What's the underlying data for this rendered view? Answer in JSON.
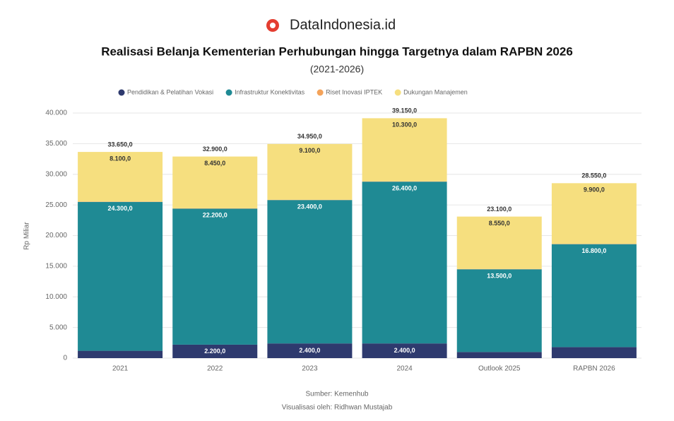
{
  "brand": "DataIndonesia.id",
  "chart_data": {
    "type": "stacked_bar",
    "title": "Realisasi Belanja Kementerian Perhubungan hingga Targetnya dalam RAPBN 2026",
    "subtitle": "(2021-2026)",
    "y_label": "Rp Miliar",
    "categories": [
      "2021",
      "2022",
      "2023",
      "2024",
      "Outlook 2025",
      "RAPBN 2026"
    ],
    "series": [
      {
        "name": "Pendidikan & Pelatihan Vokasi",
        "color": "#2e3a6e",
        "values": [
          1200,
          2200,
          2400,
          2400,
          1000,
          1800
        ],
        "value_labels": [
          null,
          "2.200,0",
          "2.400,0",
          "2.400,0",
          null,
          null
        ]
      },
      {
        "name": "Infrastruktur Konektivitas",
        "color": "#1f8a94",
        "values": [
          24300,
          22200,
          23400,
          26400,
          13500,
          16800
        ],
        "value_labels": [
          "24.300,0",
          "22.200,0",
          "23.400,0",
          "26.400,0",
          "13.500,0",
          "16.800,0"
        ]
      },
      {
        "name": "Riset Inovasi IPTEK",
        "color": "#f4a35a",
        "values": [
          50,
          50,
          50,
          50,
          50,
          50
        ]
      },
      {
        "name": "Dukungan Manajemen",
        "color": "#f6df7f",
        "values": [
          8100,
          8450,
          9100,
          10300,
          8550,
          9900
        ],
        "value_labels": [
          "8.100,0",
          "8.450,0",
          "9.100,0",
          "10.300,0",
          "8.550,0",
          "9.900,0"
        ]
      }
    ],
    "totals": [
      33650,
      32900,
      34950,
      39150,
      23100,
      28550
    ],
    "total_labels": [
      "33.650,0",
      "32.900,0",
      "34.950,0",
      "39.150,0",
      "23.100,0",
      "28.550,0"
    ],
    "ylim": [
      0,
      40000
    ],
    "yticks": [
      0,
      {
        "value": 5000,
        "label": "5.000"
      },
      {
        "value": 10000,
        "label": "10.000"
      },
      {
        "value": 15000,
        "label": "15.000"
      },
      {
        "value": 20000,
        "label": "20.000"
      },
      {
        "value": 25000,
        "label": "25.000"
      },
      {
        "value": 30000,
        "label": "30.000"
      },
      {
        "value": 35000,
        "label": "35.000"
      },
      {
        "value": 40000,
        "label": "40.000"
      }
    ],
    "grid": true
  },
  "footer": {
    "source": "Sumber: Kemenhub",
    "credit": "Visualisasi oleh: Ridhwan Mustajab"
  }
}
